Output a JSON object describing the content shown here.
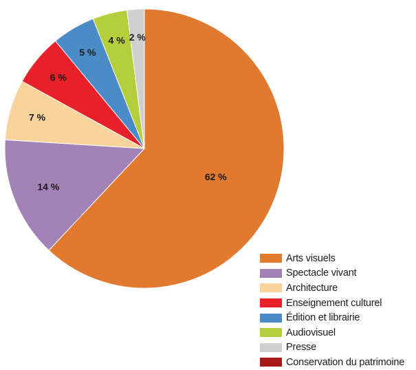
{
  "chart_data": {
    "type": "pie",
    "title": "",
    "categories": [
      "Arts visuels",
      "Spectacle vivant",
      "Architecture",
      "Enseignement culturel",
      "Édition et librairie",
      "Audiovisuel",
      "Presse",
      "Conservation du patrimoine"
    ],
    "values": [
      62,
      14,
      7,
      6,
      5,
      4,
      2,
      0
    ],
    "labels": [
      "62 %",
      "14 %",
      "7 %",
      "6 %",
      "5 %",
      "4 %",
      "2 %",
      ""
    ],
    "colors": [
      "#E17A2E",
      "#A382B8",
      "#F8D39C",
      "#E8202A",
      "#4A8BC8",
      "#B4CE3C",
      "#CFCFCF",
      "#A61916"
    ],
    "legend_position": "bottom-right",
    "start": "12 o'clock",
    "direction": "clockwise"
  }
}
